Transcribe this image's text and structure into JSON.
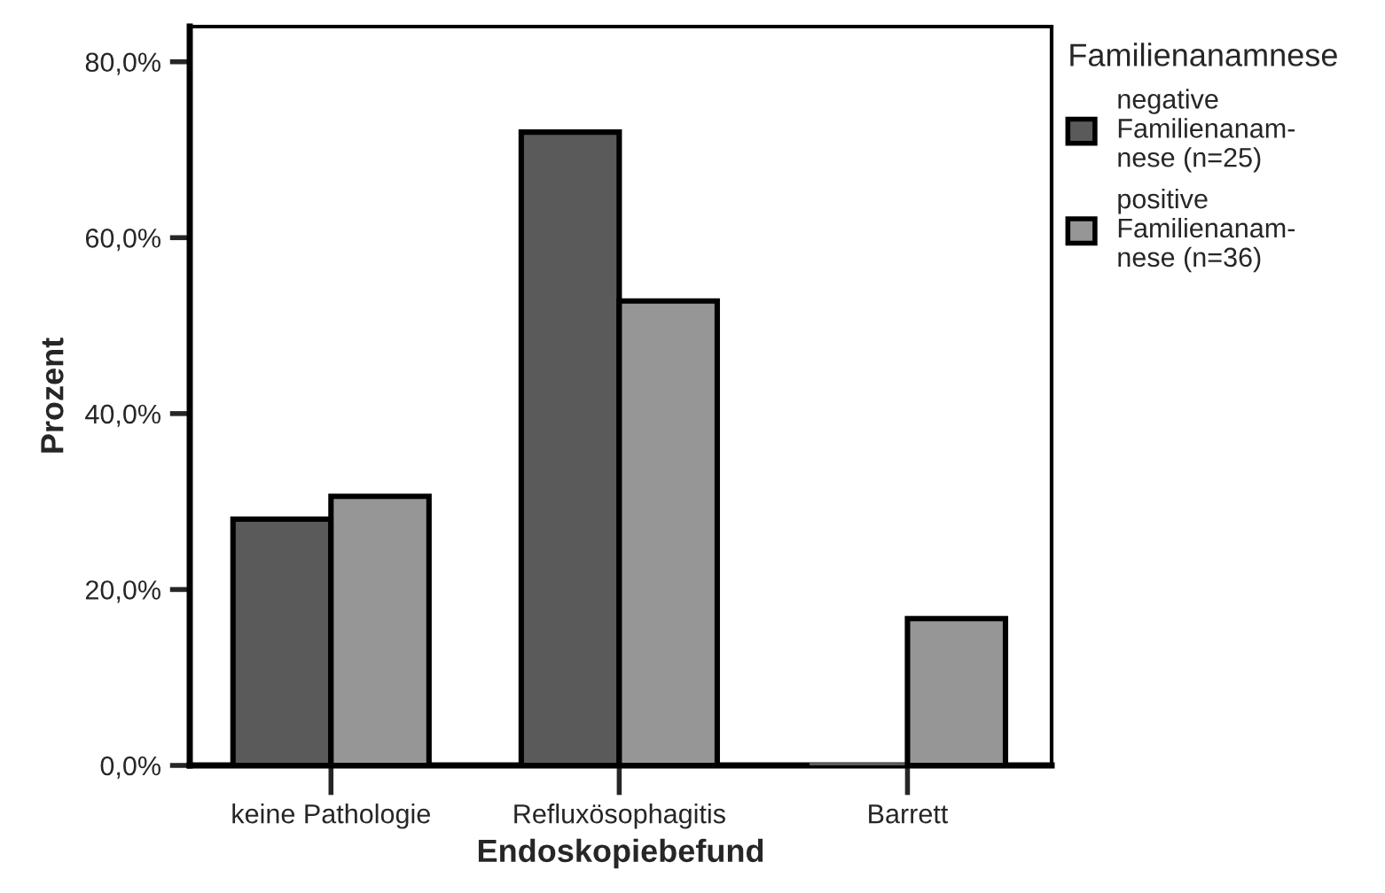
{
  "chart_data": {
    "type": "bar",
    "xlabel": "Endoskopiebefund",
    "ylabel": "Prozent",
    "legend_title": "Familienanamnese",
    "categories": [
      "keine Pathologie",
      "Refluxösophagitis",
      "Barrett"
    ],
    "series": [
      {
        "name": "negative\nFamilienanam-\nnese (n=25)",
        "color": "#5a5a5a",
        "values": [
          28.0,
          72.0,
          0.0
        ]
      },
      {
        "name": "positive\nFamilienanam-\nnese (n=36)",
        "color": "#969696",
        "values": [
          30.6,
          52.8,
          16.7
        ]
      }
    ],
    "ylim": [
      0,
      84
    ],
    "yticks": [
      {
        "value": 0,
        "label": "0,0%"
      },
      {
        "value": 20,
        "label": "20,0%"
      },
      {
        "value": 40,
        "label": "40,0%"
      },
      {
        "value": 60,
        "label": "60,0%"
      },
      {
        "value": 80,
        "label": "80,0%"
      }
    ],
    "grid": false,
    "legend": "right"
  }
}
